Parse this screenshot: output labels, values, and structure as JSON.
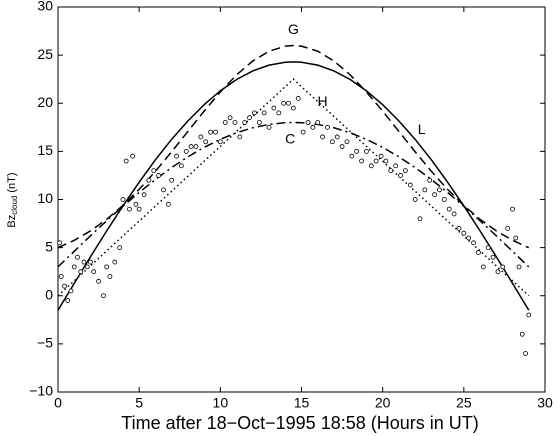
{
  "chart_data": {
    "type": "line",
    "xlabel": "Time after 18−Oct−1995 18:58 (Hours in UT)",
    "ylabel": {
      "main": "Bz",
      "sub": "cloud",
      "unit": "(nT)"
    },
    "xlim": [
      0,
      30
    ],
    "ylim": [
      -10,
      30
    ],
    "xticks": [
      0,
      5,
      10,
      15,
      20,
      25,
      30
    ],
    "yticks": [
      {
        "value": -10,
        "label": "−10"
      },
      {
        "value": -5,
        "label": "−5"
      },
      0,
      5,
      10,
      15,
      20,
      25,
      30
    ],
    "x": [
      0,
      1,
      2,
      3,
      4,
      5,
      6,
      7,
      8,
      9,
      10,
      11,
      12,
      13,
      14,
      14.5,
      15,
      16,
      17,
      18,
      19,
      20,
      21,
      22,
      23,
      24,
      25,
      26,
      27,
      28,
      29
    ],
    "series": [
      {
        "name": "L",
        "color": "#000000",
        "dash": "solid",
        "values": [
          -1.5,
          1.29,
          4.05,
          6.74,
          9.33,
          11.8,
          14.12,
          16.25,
          18.16,
          19.85,
          21.29,
          22.47,
          23.36,
          23.96,
          24.26,
          24.3,
          24.26,
          23.96,
          23.36,
          22.47,
          21.29,
          19.85,
          18.16,
          16.25,
          14.12,
          11.8,
          9.33,
          6.74,
          4.05,
          1.29,
          -1.5
        ]
      },
      {
        "name": "G",
        "color": "#000000",
        "dash": "dashed",
        "values": [
          4.99,
          5.76,
          6.74,
          7.94,
          9.38,
          11.05,
          12.93,
          14.96,
          17.07,
          19.18,
          21.17,
          22.95,
          24.39,
          25.41,
          25.93,
          26,
          25.93,
          25.41,
          24.39,
          22.95,
          21.17,
          19.18,
          17.07,
          14.96,
          12.93,
          11.05,
          9.38,
          7.94,
          6.74,
          5.76,
          4.99
        ]
      },
      {
        "name": "H",
        "color": "#000000",
        "dash": "dotted",
        "values": [
          0,
          1.55,
          3.1,
          4.66,
          6.21,
          7.76,
          9.31,
          10.86,
          12.41,
          13.97,
          15.52,
          17.07,
          18.62,
          20.17,
          21.72,
          22.5,
          21.72,
          20.17,
          18.62,
          17.07,
          15.52,
          13.97,
          12.41,
          10.86,
          9.31,
          7.76,
          6.21,
          4.66,
          3.1,
          1.55,
          0
        ]
      },
      {
        "name": "C",
        "color": "#000000",
        "dash": "dashdot",
        "values": [
          3,
          4.62,
          6.23,
          7.79,
          9.3,
          10.73,
          12.08,
          13.32,
          14.43,
          15.42,
          16.25,
          16.94,
          17.45,
          17.8,
          17.98,
          18,
          17.98,
          17.8,
          17.45,
          16.94,
          16.25,
          15.42,
          14.43,
          13.32,
          12.08,
          10.73,
          9.3,
          7.79,
          6.23,
          4.62,
          3
        ]
      }
    ],
    "observations": {
      "color": "#000000",
      "x": [
        0.1,
        0.2,
        0.4,
        0.6,
        0.8,
        1.0,
        1.2,
        1.4,
        1.6,
        1.8,
        2.0,
        2.2,
        2.5,
        2.8,
        3.0,
        3.2,
        3.5,
        3.8,
        4.0,
        4.2,
        4.4,
        4.6,
        4.8,
        5.0,
        5.3,
        5.6,
        5.9,
        6.2,
        6.5,
        6.8,
        7.0,
        7.3,
        7.6,
        7.9,
        8.2,
        8.5,
        8.8,
        9.1,
        9.4,
        9.7,
        10.0,
        10.3,
        10.6,
        10.9,
        11.2,
        11.5,
        11.8,
        12.1,
        12.4,
        12.7,
        13.0,
        13.3,
        13.6,
        13.9,
        14.2,
        14.5,
        14.8,
        15.1,
        15.4,
        15.7,
        16.0,
        16.3,
        16.6,
        16.9,
        17.2,
        17.5,
        17.8,
        18.1,
        18.4,
        18.7,
        19.0,
        19.3,
        19.6,
        19.9,
        20.2,
        20.5,
        20.8,
        21.1,
        21.4,
        21.7,
        22.0,
        22.3,
        22.6,
        22.9,
        23.2,
        23.5,
        23.8,
        24.1,
        24.4,
        24.7,
        25.0,
        25.3,
        25.6,
        25.9,
        26.2,
        26.5,
        26.8,
        27.1,
        27.4,
        27.7,
        28.0,
        28.2,
        28.4,
        28.6,
        28.8,
        29.0
      ],
      "values": [
        5.5,
        2,
        1,
        -0.5,
        0.5,
        3,
        4,
        2.5,
        3.5,
        3,
        3.5,
        2.5,
        1.5,
        0,
        3,
        2,
        3.5,
        5,
        10,
        14,
        9,
        14.5,
        9.5,
        9,
        10.5,
        12,
        13,
        12.5,
        11,
        9.5,
        12,
        14.5,
        13.5,
        15,
        15.5,
        15.5,
        16.5,
        16,
        17,
        17,
        16,
        18,
        18.5,
        18,
        16.5,
        18,
        18.5,
        19,
        18,
        19,
        17.5,
        19.5,
        19,
        20,
        20,
        19.5,
        20.5,
        17,
        18,
        17.5,
        18,
        16.5,
        17.5,
        16,
        16.5,
        15.5,
        16,
        14.5,
        15,
        14,
        15,
        13.5,
        14,
        14.5,
        14,
        13,
        13.5,
        12.5,
        13,
        11.5,
        10,
        8,
        11,
        12,
        10.5,
        11,
        10,
        9,
        8.5,
        7,
        6.5,
        6,
        5.5,
        4.5,
        3,
        5,
        4,
        2.5,
        3,
        7,
        9,
        6,
        3,
        -4,
        -6,
        -2
      ]
    }
  }
}
